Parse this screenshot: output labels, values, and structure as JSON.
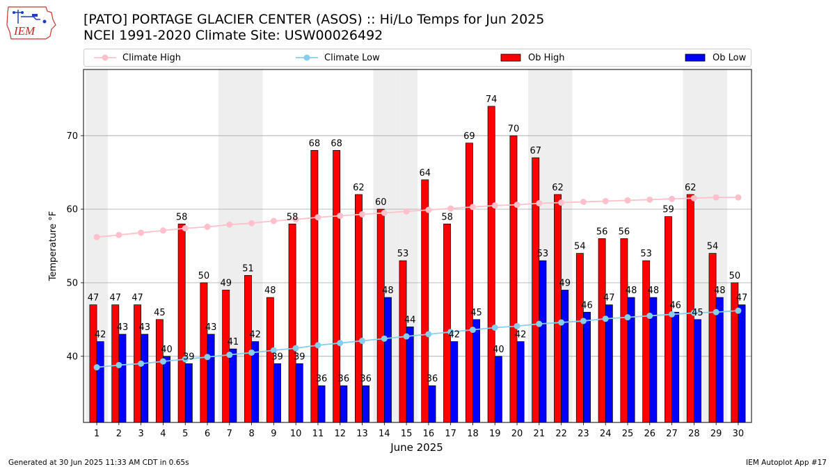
{
  "header": {
    "title_line1": "[PATO] PORTAGE GLACIER CENTER (ASOS) :: Hi/Lo Temps for Jun 2025",
    "title_line2": "NCEI 1991-2020 Climate Site: USW00026492",
    "logo_text": "IEM"
  },
  "legend": {
    "climate_high": "Climate High",
    "climate_low": "Climate Low",
    "ob_high": "Ob High",
    "ob_low": "Ob Low"
  },
  "footer": {
    "left": "Generated at 30 Jun 2025 11:33 AM CDT in 0.65s",
    "right": "IEM Autoplot App #17"
  },
  "colors": {
    "ob_high": "#ff0000",
    "ob_low": "#0000ff",
    "climate_high": "#ffc0cb",
    "climate_low": "#87ceeb",
    "weekend_band": "#eeeeee",
    "grid": "#b0b0b0"
  },
  "chart_data": {
    "type": "bar",
    "xlabel": "June 2025",
    "ylabel": "Temperature °F",
    "ylim": [
      31,
      79
    ],
    "yticks": [
      40,
      50,
      60,
      70
    ],
    "grid": "horizontal",
    "legend_position": "top",
    "categories": [
      1,
      2,
      3,
      4,
      5,
      6,
      7,
      8,
      9,
      10,
      11,
      12,
      13,
      14,
      15,
      16,
      17,
      18,
      19,
      20,
      21,
      22,
      23,
      24,
      25,
      26,
      27,
      28,
      29,
      30
    ],
    "shaded_weekend_days": [
      1,
      7,
      8,
      14,
      15,
      21,
      22,
      28,
      29
    ],
    "series": [
      {
        "name": "Ob High",
        "kind": "bar",
        "values": [
          47,
          47,
          47,
          45,
          58,
          50,
          49,
          51,
          48,
          58,
          68,
          68,
          62,
          60,
          53,
          64,
          58,
          69,
          74,
          70,
          67,
          62,
          54,
          56,
          56,
          53,
          59,
          62,
          54,
          50
        ]
      },
      {
        "name": "Ob Low",
        "kind": "bar",
        "values": [
          42,
          43,
          43,
          40,
          39,
          43,
          41,
          42,
          39,
          39,
          36,
          36,
          36,
          48,
          44,
          36,
          42,
          45,
          40,
          42,
          53,
          49,
          46,
          47,
          48,
          48,
          46,
          45,
          48,
          47
        ]
      },
      {
        "name": "Climate High",
        "kind": "line",
        "values": [
          56.2,
          56.5,
          56.8,
          57.1,
          57.4,
          57.6,
          57.9,
          58.1,
          58.4,
          58.6,
          58.9,
          59.1,
          59.3,
          59.5,
          59.7,
          59.9,
          60.1,
          60.3,
          60.5,
          60.6,
          60.8,
          60.9,
          61.0,
          61.1,
          61.2,
          61.3,
          61.4,
          61.5,
          61.6,
          61.6
        ]
      },
      {
        "name": "Climate Low",
        "kind": "line",
        "values": [
          38.5,
          38.8,
          39.0,
          39.3,
          39.6,
          39.9,
          40.2,
          40.5,
          40.8,
          41.1,
          41.5,
          41.8,
          42.1,
          42.4,
          42.7,
          43.0,
          43.3,
          43.6,
          43.9,
          44.1,
          44.4,
          44.6,
          44.8,
          45.1,
          45.3,
          45.5,
          45.7,
          45.9,
          46.0,
          46.2
        ]
      }
    ]
  }
}
